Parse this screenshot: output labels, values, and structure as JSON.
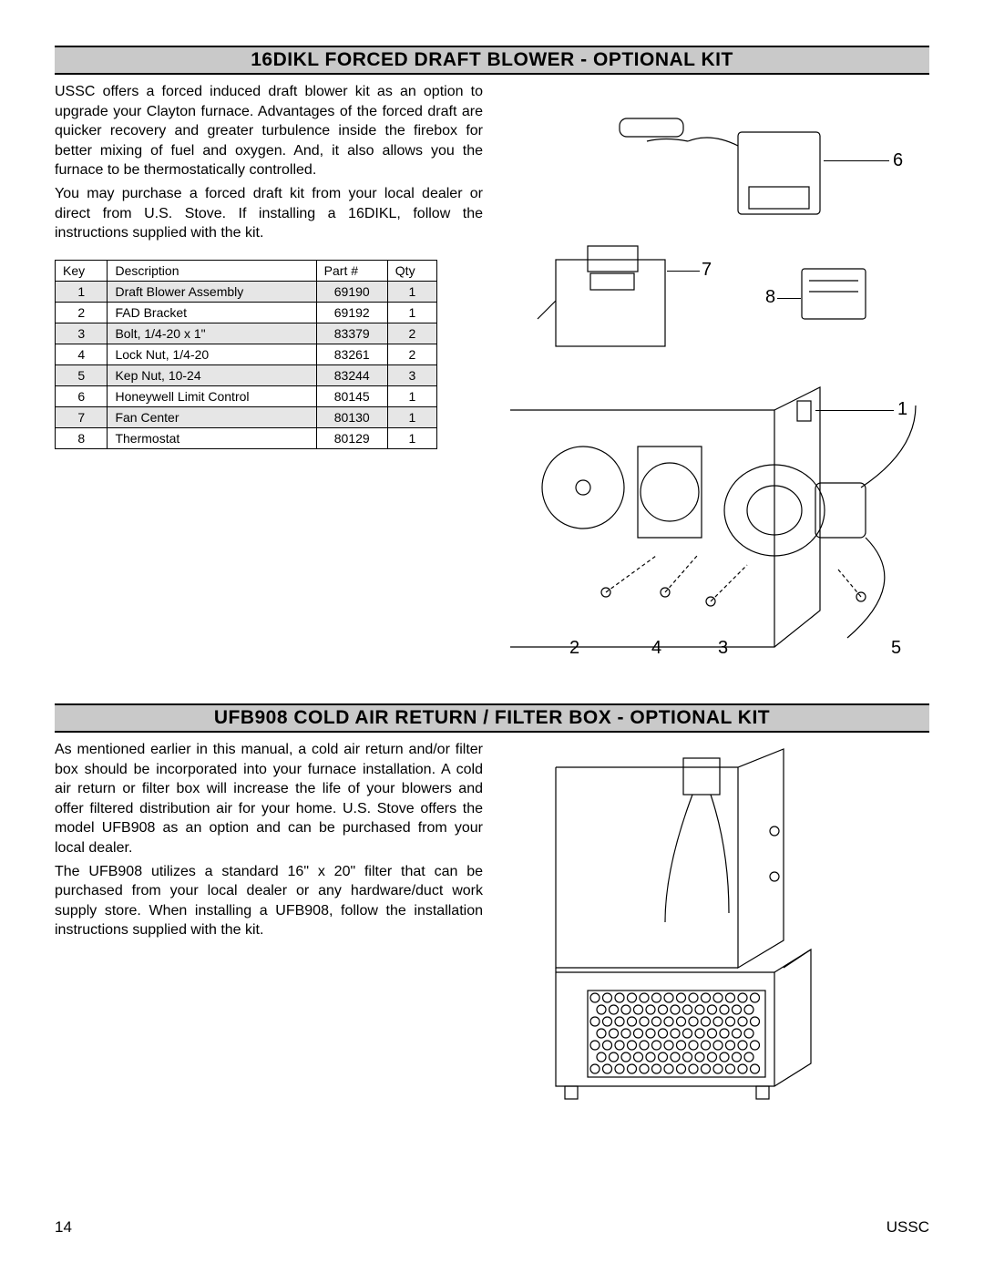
{
  "section1": {
    "title": "16DIKL FORCED DRAFT BLOWER - OPTIONAL KIT",
    "para1": "USSC offers a forced induced draft blower kit as an option to upgrade your Clayton furnace.  Advantages of the forced draft are quicker recovery and greater turbulence inside the firebox for better mixing of fuel and oxygen.  And, it also allows you the furnace to be thermostatically controlled.",
    "para2": "You may purchase a forced draft kit from your local dealer or direct from U.S. Stove. If installing a 16DIKL, follow the instructions supplied with the kit.",
    "table": {
      "columns": [
        "Key",
        "Description",
        "Part #",
        "Qty"
      ],
      "rows": [
        {
          "key": "1",
          "desc": "Draft Blower Assembly",
          "part": "69190",
          "qty": "1",
          "shaded": true
        },
        {
          "key": "2",
          "desc": "FAD Bracket",
          "part": "69192",
          "qty": "1",
          "shaded": false
        },
        {
          "key": "3",
          "desc": "Bolt, 1/4-20 x 1\"",
          "part": "83379",
          "qty": "2",
          "shaded": true
        },
        {
          "key": "4",
          "desc": "Lock Nut, 1/4-20",
          "part": "83261",
          "qty": "2",
          "shaded": false
        },
        {
          "key": "5",
          "desc": "Kep Nut, 10-24",
          "part": "83244",
          "qty": "3",
          "shaded": true
        },
        {
          "key": "6",
          "desc": "Honeywell Limit Control",
          "part": "80145",
          "qty": "1",
          "shaded": false
        },
        {
          "key": "7",
          "desc": "Fan Center",
          "part": "80130",
          "qty": "1",
          "shaded": true
        },
        {
          "key": "8",
          "desc": "Thermostat",
          "part": "80129",
          "qty": "1",
          "shaded": false
        }
      ]
    },
    "callouts": {
      "c1": "1",
      "c2": "2",
      "c3": "3",
      "c4": "4",
      "c5": "5",
      "c6": "6",
      "c7": "7",
      "c8": "8"
    }
  },
  "section2": {
    "title": "UFB908 COLD AIR RETURN / FILTER BOX - OPTIONAL KIT",
    "para1": "As mentioned earlier in this manual, a cold air return and/or filter box should be incorporated into your furnace installation.  A cold air return or filter box will increase the life of your blowers and offer filtered distribution air for your home.  U.S. Stove offers the model UFB908 as an option and can be purchased from your local dealer.",
    "para2": "The UFB908 utilizes a standard 16\" x 20\" filter that can be purchased from your local dealer or any hardware/duct work supply store. When installing a UFB908, follow the installation instructions supplied with the kit."
  },
  "footer": {
    "page": "14",
    "brand": "USSC"
  },
  "style": {
    "header_bg": "#c9c9c9",
    "shaded_row_bg": "#e6e6e6",
    "text_color": "#000000",
    "border_color": "#000000",
    "header_fontsize": 21,
    "body_fontsize": 16,
    "table_fontsize": 14,
    "callout_fontsize": 20
  }
}
